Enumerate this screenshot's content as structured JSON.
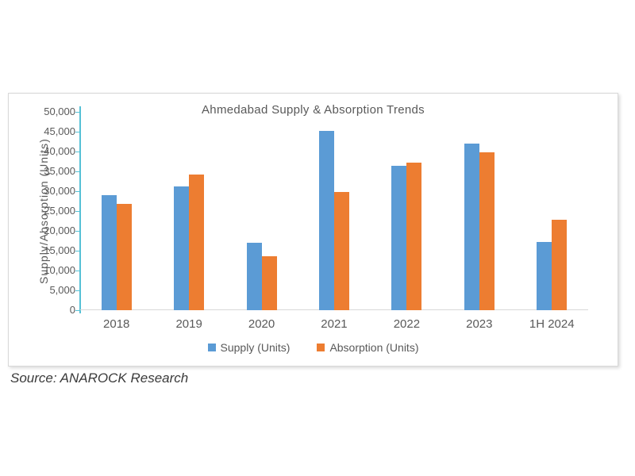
{
  "chart_data": {
    "type": "bar",
    "title": "Ahmedabad Supply & Absorption Trends",
    "xlabel": "",
    "ylabel": "Supply/Absorption (Units)",
    "categories": [
      "2018",
      "2019",
      "2020",
      "2021",
      "2022",
      "2023",
      "1H 2024"
    ],
    "series": [
      {
        "name": "Supply (Units)",
        "color": "#5B9BD5",
        "values": [
          29000,
          31300,
          17000,
          45300,
          36400,
          42100,
          17200
        ]
      },
      {
        "name": "Absorption (Units)",
        "color": "#ED7D31",
        "values": [
          26800,
          34200,
          13700,
          29900,
          37200,
          39800,
          22900
        ]
      }
    ],
    "ylim": [
      0,
      50000
    ],
    "yticks": [
      {
        "value": 0,
        "label": "0"
      },
      {
        "value": 5000,
        "label": "5,000"
      },
      {
        "value": 10000,
        "label": "10,000"
      },
      {
        "value": 15000,
        "label": "15,000"
      },
      {
        "value": 20000,
        "label": "20,000"
      },
      {
        "value": 25000,
        "label": "25,000"
      },
      {
        "value": 30000,
        "label": "30,000"
      },
      {
        "value": 35000,
        "label": "35,000"
      },
      {
        "value": 40000,
        "label": "40,000"
      },
      {
        "value": 45000,
        "label": "45,000"
      },
      {
        "value": 50000,
        "label": "50,000"
      }
    ],
    "grid": false,
    "legend_position": "bottom"
  },
  "source_note": "Source: ANAROCK Research",
  "colors": {
    "supply_bar": "#5B9BD5",
    "absorption_bar": "#ED7D31",
    "axis_line": "#56C1D6",
    "axis_text": "#595959",
    "box_border": "#D8D8D8",
    "source_text": "#3A3A3A"
  }
}
